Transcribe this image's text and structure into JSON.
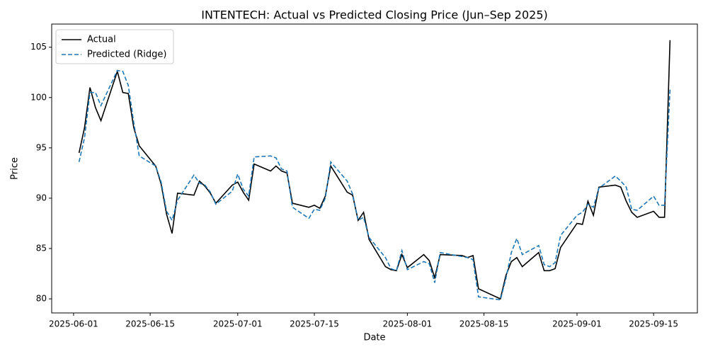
{
  "chart_data": {
    "type": "line",
    "title": "INTENTECH: Actual vs Predicted Closing Price (Jun–Sep 2025)",
    "x_label": "Date",
    "y_label": "Price",
    "x": [
      "2025-06-02",
      "2025-06-03",
      "2025-06-04",
      "2025-06-05",
      "2025-06-06",
      "2025-06-09",
      "2025-06-10",
      "2025-06-11",
      "2025-06-12",
      "2025-06-13",
      "2025-06-16",
      "2025-06-17",
      "2025-06-18",
      "2025-06-19",
      "2025-06-20",
      "2025-06-23",
      "2025-06-24",
      "2025-06-25",
      "2025-06-26",
      "2025-06-27",
      "2025-06-30",
      "2025-07-01",
      "2025-07-02",
      "2025-07-03",
      "2025-07-04",
      "2025-07-07",
      "2025-07-08",
      "2025-07-09",
      "2025-07-10",
      "2025-07-11",
      "2025-07-14",
      "2025-07-15",
      "2025-07-16",
      "2025-07-17",
      "2025-07-18",
      "2025-07-21",
      "2025-07-22",
      "2025-07-23",
      "2025-07-24",
      "2025-07-25",
      "2025-07-28",
      "2025-07-29",
      "2025-07-30",
      "2025-07-31",
      "2025-08-01",
      "2025-08-04",
      "2025-08-05",
      "2025-08-06",
      "2025-08-07",
      "2025-08-11",
      "2025-08-12",
      "2025-08-13",
      "2025-08-14",
      "2025-08-18",
      "2025-08-19",
      "2025-08-20",
      "2025-08-21",
      "2025-08-22",
      "2025-08-25",
      "2025-08-26",
      "2025-08-27",
      "2025-08-28",
      "2025-08-29",
      "2025-09-01",
      "2025-09-02",
      "2025-09-03",
      "2025-09-04",
      "2025-09-05",
      "2025-09-08",
      "2025-09-09",
      "2025-09-10",
      "2025-09-11",
      "2025-09-12",
      "2025-09-15",
      "2025-09-16",
      "2025-09-17",
      "2025-09-18"
    ],
    "series": [
      {
        "name": "Actual",
        "color": "#000000",
        "dash": "solid",
        "values": [
          94.5,
          97,
          101,
          99,
          97.7,
          102.6,
          100.5,
          100.4,
          97,
          95.2,
          93.2,
          91.4,
          88.4,
          86.5,
          90.5,
          90.3,
          91.7,
          91.2,
          90.5,
          89.5,
          91.3,
          91.6,
          90.6,
          89.8,
          93.4,
          92.7,
          93.2,
          92.7,
          92.5,
          89.5,
          89.1,
          89.3,
          89.0,
          90.2,
          93.2,
          90.6,
          90.3,
          87.8,
          88.6,
          85.9,
          83.2,
          82.9,
          82.8,
          84.4,
          83.1,
          84.4,
          83.8,
          82.1,
          84.4,
          84.3,
          84.1,
          84.3,
          81.0,
          80.0,
          82.3,
          83.7,
          84.1,
          83.2,
          84.6,
          82.8,
          82.8,
          83.0,
          85.1,
          87.5,
          87.4,
          89.7,
          88.3,
          91.1,
          91.3,
          91.1,
          89.7,
          88.6,
          88.1,
          88.7,
          88.1,
          88.1,
          105.7
        ]
      },
      {
        "name": "Predicted (Ridge)",
        "color": "#1f77b4",
        "dash": "dashed",
        "values": [
          93.6,
          96,
          100.5,
          100.5,
          99.2,
          102.7,
          102.6,
          101.2,
          97.5,
          94.2,
          93.2,
          91.6,
          88.7,
          87.8,
          89.8,
          92.3,
          91.5,
          91.3,
          90.6,
          89.4,
          90.7,
          92.4,
          90.9,
          90.2,
          94.1,
          94.2,
          94.0,
          92.9,
          92.7,
          89.1,
          88.0,
          88.9,
          88.8,
          90.0,
          93.6,
          91.7,
          90.4,
          87.8,
          88.1,
          86.1,
          84.1,
          83.0,
          82.8,
          84.8,
          82.9,
          83.7,
          83.5,
          81.6,
          84.6,
          84.2,
          84.1,
          83.9,
          80.2,
          79.9,
          82.0,
          84.6,
          86.0,
          84.4,
          85.3,
          83.4,
          83.2,
          83.6,
          86.3,
          88.3,
          88.6,
          89.4,
          89.1,
          91.0,
          92.2,
          91.7,
          91.1,
          88.9,
          88.8,
          90.2,
          89.3,
          89.3,
          100.8
        ]
      }
    ],
    "xlim": [
      "2025-05-28",
      "2025-09-23"
    ],
    "xticks": [
      "2025-06-01",
      "2025-06-15",
      "2025-07-01",
      "2025-07-15",
      "2025-08-01",
      "2025-08-15",
      "2025-09-01",
      "2025-09-15"
    ],
    "ylim": [
      78.6,
      107.3
    ],
    "yticks": [
      80,
      85,
      90,
      95,
      100,
      105
    ],
    "grid": false,
    "legend": "upper left"
  }
}
